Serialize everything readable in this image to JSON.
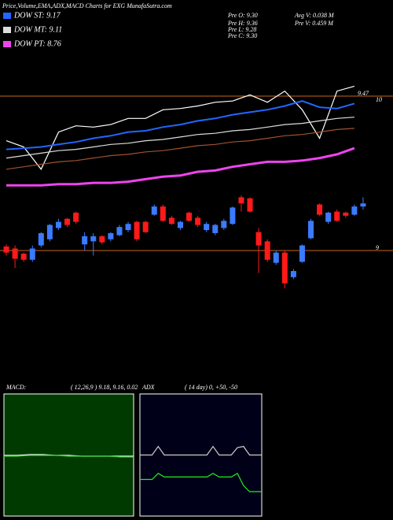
{
  "header": {
    "title": "Price,Volume,EMA,ADX,MACD Charts for EXG MunafaSutra.com"
  },
  "stats": [
    "Pre  O: 9.30",
    "Pre  H: 9.36",
    "Pre  L: 9.28",
    "Pre  C: 9.30",
    "Avg V: 0.038  M",
    "Pre  V: 0.459 M"
  ],
  "chart_data": [
    {
      "type": "line",
      "x": [
        0,
        2,
        4,
        6,
        8,
        10,
        12,
        14,
        16,
        18,
        20,
        22,
        24,
        26,
        28,
        30,
        32,
        34,
        36,
        38,
        40
      ],
      "xlim": [
        -0.5,
        41.5
      ],
      "ylim": [
        8.72,
        9.8
      ],
      "yticks": [
        {
          "value": 9.47,
          "label": "9.47"
        }
      ],
      "annotation": "10",
      "grid_color": "#c8641e",
      "series": [
        {
          "color": "#ffffff",
          "values": [
            9.11,
            9.06,
            8.88,
            9.18,
            9.23,
            9.22,
            9.24,
            9.29,
            9.29,
            9.36,
            9.37,
            9.39,
            9.42,
            9.43,
            9.48,
            9.42,
            9.51,
            9.36,
            9.13,
            9.51,
            9.55
          ]
        },
        {
          "name": "DOW ST: 9.17",
          "color": "#2266ff",
          "values": [
            9.04,
            9.05,
            9.06,
            9.08,
            9.1,
            9.13,
            9.15,
            9.18,
            9.19,
            9.22,
            9.24,
            9.27,
            9.29,
            9.32,
            9.34,
            9.36,
            9.39,
            9.43,
            9.38,
            9.37,
            9.41
          ]
        },
        {
          "name": "DOW MT: 9.11",
          "color": "#dddddd",
          "values": [
            8.97,
            8.99,
            9.01,
            9.03,
            9.04,
            9.06,
            9.08,
            9.09,
            9.11,
            9.12,
            9.14,
            9.16,
            9.17,
            9.19,
            9.2,
            9.22,
            9.24,
            9.25,
            9.27,
            9.29,
            9.3
          ]
        },
        {
          "color": "#a0522d",
          "values": [
            8.88,
            8.9,
            8.92,
            8.94,
            8.95,
            8.97,
            8.99,
            9.0,
            9.02,
            9.03,
            9.05,
            9.07,
            9.08,
            9.1,
            9.11,
            9.13,
            9.15,
            9.16,
            9.18,
            9.2,
            9.21
          ]
        },
        {
          "name": "DOW PT: 8.76",
          "color": "#ee44ee",
          "values": [
            8.75,
            8.75,
            8.75,
            8.76,
            8.76,
            8.77,
            8.77,
            8.78,
            8.8,
            8.82,
            8.83,
            8.86,
            8.87,
            8.9,
            8.92,
            8.94,
            8.94,
            8.95,
            8.97,
            9.0,
            9.05
          ]
        }
      ]
    },
    {
      "type": "candlestick",
      "x": [
        0,
        1,
        2,
        3,
        4,
        5,
        6,
        7,
        8,
        9,
        10,
        11,
        12,
        13,
        14,
        15,
        16,
        17,
        18,
        19,
        20,
        21,
        22,
        23,
        24,
        25,
        26,
        27,
        28,
        29,
        30,
        31,
        32,
        33,
        34,
        35,
        36,
        37,
        38,
        39,
        40,
        41
      ],
      "xlim": [
        -0.5,
        41.5
      ],
      "ylim": [
        8.6,
        9.6
      ],
      "yticks": [
        9
      ],
      "grid_color": "#c8641e",
      "up_color": "#3b7bff",
      "down_color": "#ff1a1a",
      "open": [
        9.04,
        9.02,
        8.97,
        8.91,
        9.05,
        9.11,
        9.22,
        9.31,
        9.37,
        9.06,
        9.09,
        9.14,
        9.11,
        9.15,
        9.2,
        9.28,
        9.28,
        9.35,
        9.43,
        9.32,
        9.22,
        9.37,
        9.32,
        9.2,
        9.17,
        9.22,
        9.26,
        9.52,
        9.51,
        9.18,
        9.09,
        8.88,
        8.98,
        8.74,
        8.89,
        9.12,
        9.45,
        9.28,
        9.38,
        9.37,
        9.35,
        9.43
      ],
      "high": [
        9.06,
        9.05,
        8.98,
        9.05,
        9.18,
        9.26,
        9.31,
        9.32,
        9.38,
        9.18,
        9.17,
        9.15,
        9.18,
        9.25,
        9.28,
        9.29,
        9.29,
        9.45,
        9.45,
        9.34,
        9.29,
        9.38,
        9.34,
        9.28,
        9.26,
        9.31,
        9.43,
        9.54,
        9.52,
        9.22,
        9.11,
        9.0,
        9.0,
        8.82,
        9.06,
        9.31,
        9.46,
        9.38,
        9.4,
        9.38,
        9.45,
        9.52
      ],
      "low": [
        8.95,
        8.83,
        8.89,
        8.89,
        9.03,
        9.09,
        9.2,
        9.23,
        9.26,
        9.0,
        8.95,
        9.06,
        9.09,
        9.14,
        9.18,
        9.09,
        9.17,
        9.34,
        9.28,
        9.25,
        9.2,
        9.28,
        9.23,
        9.18,
        9.15,
        9.2,
        9.25,
        9.38,
        9.37,
        8.78,
        8.89,
        8.86,
        8.63,
        8.72,
        8.88,
        9.11,
        9.34,
        9.26,
        9.28,
        9.32,
        9.34,
        9.4
      ],
      "close": [
        8.98,
        8.92,
        8.91,
        9.02,
        9.17,
        9.25,
        9.28,
        9.25,
        9.28,
        9.14,
        9.14,
        9.08,
        9.17,
        9.23,
        9.26,
        9.11,
        9.18,
        9.43,
        9.29,
        9.26,
        9.28,
        9.29,
        9.25,
        9.26,
        9.25,
        9.29,
        9.42,
        9.46,
        9.38,
        9.05,
        8.91,
        8.98,
        8.68,
        8.8,
        9.05,
        9.29,
        9.35,
        9.37,
        9.29,
        9.34,
        9.43,
        9.46
      ]
    },
    {
      "type": "line",
      "title": "MACD:",
      "subtitle": "( 12,26,9 ) 9.18, 9.16, 0.02",
      "background": "#013a01",
      "x": [
        0,
        1,
        2,
        3,
        4,
        5,
        6,
        7,
        8,
        9,
        10
      ],
      "xlim": [
        0,
        10
      ],
      "ylim": [
        8.4,
        9.95
      ],
      "series": [
        {
          "color": "#ffffff",
          "values": [
            9.17,
            9.17,
            9.18,
            9.18,
            9.17,
            9.17,
            9.16,
            9.16,
            9.16,
            9.16,
            9.16
          ]
        },
        {
          "color": "#33cc33",
          "values": [
            9.16,
            9.16,
            9.17,
            9.17,
            9.17,
            9.16,
            9.16,
            9.16,
            9.16,
            9.15,
            9.15
          ]
        }
      ]
    },
    {
      "type": "line",
      "title": "ADX",
      "subtitle": "( 14  day) 0, +50, -50",
      "background": "#000018",
      "x": [
        0,
        1,
        2,
        3,
        4,
        5,
        6,
        7,
        8,
        9,
        10,
        11,
        12,
        13,
        14,
        15,
        16,
        17,
        18,
        19,
        20
      ],
      "xlim": [
        0,
        20
      ],
      "ylim": [
        0,
        100
      ],
      "series": [
        {
          "color": "#cccccc",
          "values": [
            50,
            50,
            50,
            57,
            50,
            50,
            50,
            50,
            50,
            50,
            50,
            50,
            57,
            50,
            50,
            50,
            56,
            57,
            50,
            50,
            50
          ]
        },
        {
          "color": "#22ee22",
          "values": [
            30,
            30,
            30,
            35,
            32,
            32,
            32,
            32,
            32,
            32,
            32,
            32,
            35,
            32,
            32,
            32,
            35,
            25,
            20,
            20,
            20
          ]
        }
      ]
    }
  ]
}
